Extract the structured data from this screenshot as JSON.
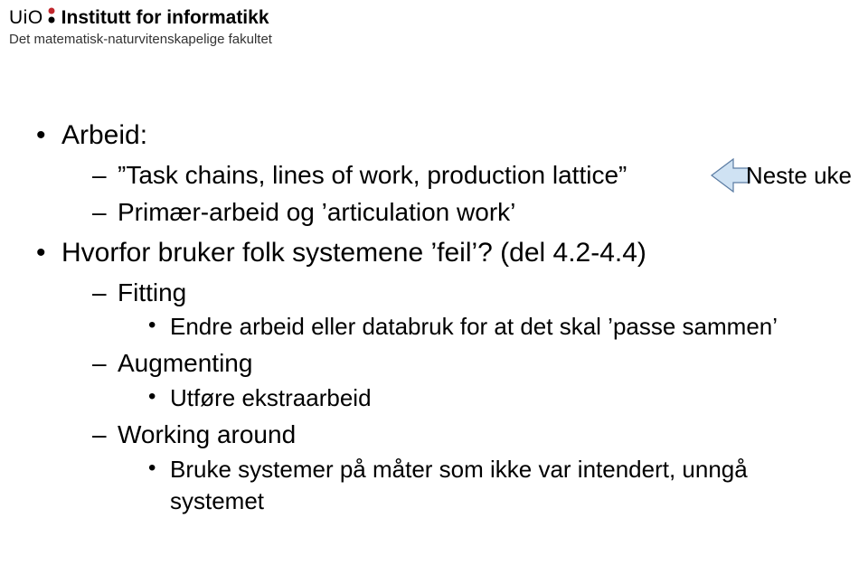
{
  "header": {
    "org": "UiO",
    "institute": "Institutt for informatikk",
    "faculty": "Det matematisk-naturvitenskapelige fakultet",
    "dot_color_top": "#c1272d",
    "dot_color_bottom": "#000000"
  },
  "callout": {
    "label": "Neste uke",
    "fill": "#cfe2f3",
    "stroke": "#5b7ca3"
  },
  "slide": {
    "items": [
      {
        "text": "Arbeid:",
        "sub": [
          {
            "text": "”Task chains, lines of work, production lattice”"
          },
          {
            "text": "Primær-arbeid og ’articulation work’"
          }
        ]
      },
      {
        "text": "Hvorfor bruker folk systemene ’feil’? (del 4.2-4.4)",
        "sub": [
          {
            "text": "Fitting",
            "sub3": [
              {
                "text": "Endre arbeid eller databruk for at det skal ’passe sammen’"
              }
            ]
          },
          {
            "text": "Augmenting",
            "sub3": [
              {
                "text": "Utføre ekstraarbeid"
              }
            ]
          },
          {
            "text": "Working around",
            "sub3": [
              {
                "text": "Bruke systemer på måter som ikke var intendert, unngå systemet"
              }
            ]
          }
        ]
      }
    ]
  }
}
